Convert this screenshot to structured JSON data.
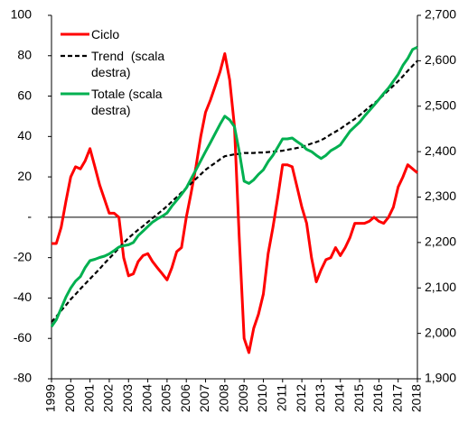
{
  "chart_data": {
    "type": "line",
    "x": [
      1999,
      1999.25,
      1999.5,
      1999.75,
      2000,
      2000.25,
      2000.5,
      2000.75,
      2001,
      2001.25,
      2001.5,
      2001.75,
      2002,
      2002.25,
      2002.5,
      2002.75,
      2003,
      2003.25,
      2003.5,
      2003.75,
      2004,
      2004.25,
      2004.5,
      2004.75,
      2005,
      2005.25,
      2005.5,
      2005.75,
      2006,
      2006.25,
      2006.5,
      2006.75,
      2007,
      2007.25,
      2007.5,
      2007.75,
      2008,
      2008.25,
      2008.5,
      2008.75,
      2009,
      2009.25,
      2009.5,
      2009.75,
      2010,
      2010.25,
      2010.5,
      2010.75,
      2011,
      2011.25,
      2011.5,
      2011.75,
      2012,
      2012.25,
      2012.5,
      2012.75,
      2013,
      2013.25,
      2013.5,
      2013.75,
      2014,
      2014.25,
      2014.5,
      2014.75,
      2015,
      2015.25,
      2015.5,
      2015.75,
      2016,
      2016.25,
      2016.5,
      2016.75,
      2017,
      2017.25,
      2017.5,
      2017.75,
      2018
    ],
    "xlim": [
      1999,
      2018
    ],
    "xticks": [
      1999,
      2000,
      2001,
      2002,
      2003,
      2004,
      2005,
      2006,
      2007,
      2008,
      2009,
      2010,
      2011,
      2012,
      2013,
      2014,
      2015,
      2016,
      2017,
      2018
    ],
    "ylim": [
      -80,
      100
    ],
    "yticks": [
      100,
      80,
      60,
      40,
      20,
      {
        "value": 0,
        "label": "-"
      },
      -20,
      -40,
      -60,
      -80
    ],
    "y2lim": [
      1900,
      2700
    ],
    "y2ticks": [
      {
        "value": 2700,
        "label": "2,700"
      },
      {
        "value": 2600,
        "label": "2,600"
      },
      {
        "value": 2500,
        "label": "2,500"
      },
      {
        "value": 2400,
        "label": "2,400"
      },
      {
        "value": 2300,
        "label": "2,300"
      },
      {
        "value": 2200,
        "label": "2,200"
      },
      {
        "value": 2100,
        "label": "2,100"
      },
      {
        "value": 2000,
        "label": "2,000"
      },
      {
        "value": 1900,
        "label": "1,900"
      }
    ],
    "legend": "upper left",
    "series": [
      {
        "name": "Ciclo",
        "color": "#ff0000",
        "line_style": "solid",
        "axis": "y",
        "values": [
          -13,
          -13,
          -5,
          8,
          20,
          25,
          24,
          28,
          34,
          25,
          16,
          9,
          2,
          2,
          0,
          -20,
          -29,
          -28,
          -22,
          -19,
          -18,
          -22,
          -25,
          -28,
          -31,
          -25,
          -17,
          -15,
          0,
          12,
          25,
          40,
          52,
          58,
          65,
          72,
          81,
          68,
          45,
          -10,
          -60,
          -67,
          -55,
          -48,
          -38,
          -18,
          -5,
          10,
          26,
          26,
          25,
          15,
          5,
          -3,
          -20,
          -32,
          -26,
          -21,
          -20,
          -15,
          -19,
          -15,
          -10,
          -3,
          -3,
          -3,
          -2,
          0,
          -2,
          -3,
          0,
          5,
          15,
          20,
          26,
          24,
          22
        ]
      },
      {
        "name": "Trend  (scala destra)",
        "color": "#000000",
        "line_style": "dashed",
        "axis": "y2",
        "values": [
          2025,
          2037,
          2050,
          2062,
          2075,
          2086,
          2098,
          2109,
          2120,
          2131,
          2142,
          2154,
          2165,
          2176,
          2188,
          2199,
          2210,
          2219,
          2228,
          2236,
          2245,
          2254,
          2262,
          2271,
          2280,
          2290,
          2300,
          2310,
          2320,
          2330,
          2340,
          2350,
          2360,
          2368,
          2375,
          2383,
          2390,
          2392,
          2394,
          2395,
          2397,
          2397,
          2397,
          2398,
          2398,
          2399,
          2400,
          2401,
          2402,
          2404,
          2406,
          2408,
          2410,
          2414,
          2418,
          2421,
          2425,
          2431,
          2438,
          2444,
          2450,
          2458,
          2465,
          2472,
          2480,
          2489,
          2498,
          2506,
          2515,
          2525,
          2535,
          2545,
          2555,
          2566,
          2578,
          2589,
          2600
        ]
      },
      {
        "name": "Totale (scala destra)",
        "color": "#00b050",
        "line_style": "solid",
        "axis": "y2",
        "values": [
          2015,
          2030,
          2055,
          2080,
          2100,
          2115,
          2125,
          2145,
          2160,
          2163,
          2167,
          2170,
          2175,
          2182,
          2190,
          2193,
          2195,
          2200,
          2215,
          2225,
          2235,
          2245,
          2252,
          2258,
          2265,
          2280,
          2293,
          2306,
          2320,
          2340,
          2360,
          2380,
          2400,
          2420,
          2440,
          2460,
          2478,
          2470,
          2455,
          2400,
          2335,
          2330,
          2338,
          2350,
          2360,
          2378,
          2392,
          2410,
          2428,
          2428,
          2430,
          2422,
          2415,
          2405,
          2400,
          2392,
          2385,
          2392,
          2402,
          2408,
          2415,
          2430,
          2445,
          2455,
          2465,
          2478,
          2490,
          2502,
          2515,
          2528,
          2540,
          2555,
          2570,
          2590,
          2605,
          2625,
          2630
        ]
      }
    ]
  }
}
